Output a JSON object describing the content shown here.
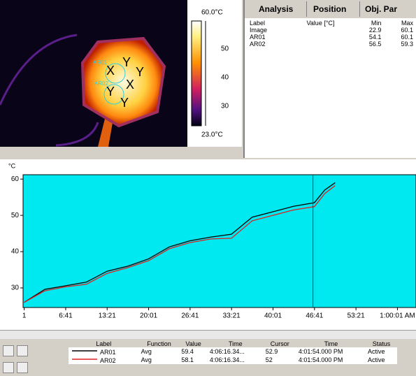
{
  "image": {
    "roi_labels": [
      "AR01",
      "AR02"
    ],
    "markers": [
      "X",
      "Y",
      "Y",
      "X",
      "Y",
      "Y"
    ]
  },
  "colorbar": {
    "max_label": "60.0°C",
    "min_label": "23.0°C",
    "ticks": [
      50,
      40,
      30
    ]
  },
  "tabs": [
    "Analysis",
    "Position",
    "Obj. Par"
  ],
  "analysis_table": {
    "columns": [
      "Label",
      "Value [°C]",
      "Min",
      "Max"
    ],
    "rows": [
      [
        "Image",
        "",
        22.9,
        60.1
      ],
      [
        "AR01",
        "",
        54.1,
        60.1
      ],
      [
        "AR02",
        "",
        56.5,
        59.3
      ]
    ]
  },
  "chart_data": {
    "type": "line",
    "y_label": "°C",
    "x": [
      0,
      200,
      400,
      600,
      800,
      1000,
      1200,
      1400,
      1600,
      1800,
      2000,
      2200,
      2400,
      2600,
      2800,
      2900,
      3000
    ],
    "series": [
      {
        "name": "AR01",
        "color": "#000000",
        "values": [
          26.0,
          29.6,
          30.6,
          31.6,
          34.6,
          36.0,
          38.0,
          41.3,
          43.0,
          44.0,
          44.8,
          49.5,
          51.0,
          52.5,
          53.5,
          57.0,
          59.0
        ]
      },
      {
        "name": "AR02",
        "color": "#e02020",
        "values": [
          26.0,
          29.2,
          30.3,
          31.0,
          34.0,
          35.6,
          37.5,
          40.8,
          42.5,
          43.5,
          43.7,
          48.5,
          50.0,
          51.5,
          52.4,
          56.0,
          58.2
        ]
      }
    ],
    "xlim": [
      -10,
      3780
    ],
    "ylim": [
      24.6,
      61.2
    ],
    "xticks": [
      {
        "value": 1,
        "label": "1"
      },
      {
        "value": 401,
        "label": "6:41"
      },
      {
        "value": 801,
        "label": "13:21"
      },
      {
        "value": 1201,
        "label": "20:01"
      },
      {
        "value": 1601,
        "label": "26:41"
      },
      {
        "value": 2001,
        "label": "33:21"
      },
      {
        "value": 2401,
        "label": "40:01"
      },
      {
        "value": 2801,
        "label": "46:41"
      },
      {
        "value": 3201,
        "label": "53:21"
      },
      {
        "value": 3601,
        "label": "1:00:01 AM"
      }
    ],
    "yticks": [
      30,
      40,
      50,
      60
    ],
    "cursor_x": 2786
  },
  "legend_table": {
    "columns": [
      "Label",
      "Function",
      "Value",
      "Time",
      "Cursor",
      "Time",
      "Status"
    ],
    "rows": [
      [
        "AR01",
        "Avg",
        59.4,
        "4:06:16.34...",
        52.9,
        "4:01:54.000 PM",
        "Active"
      ],
      [
        "AR02",
        "Avg",
        58.1,
        "4:06:16.34...",
        52.0,
        "4:01:54.000 PM",
        "Active"
      ]
    ]
  }
}
